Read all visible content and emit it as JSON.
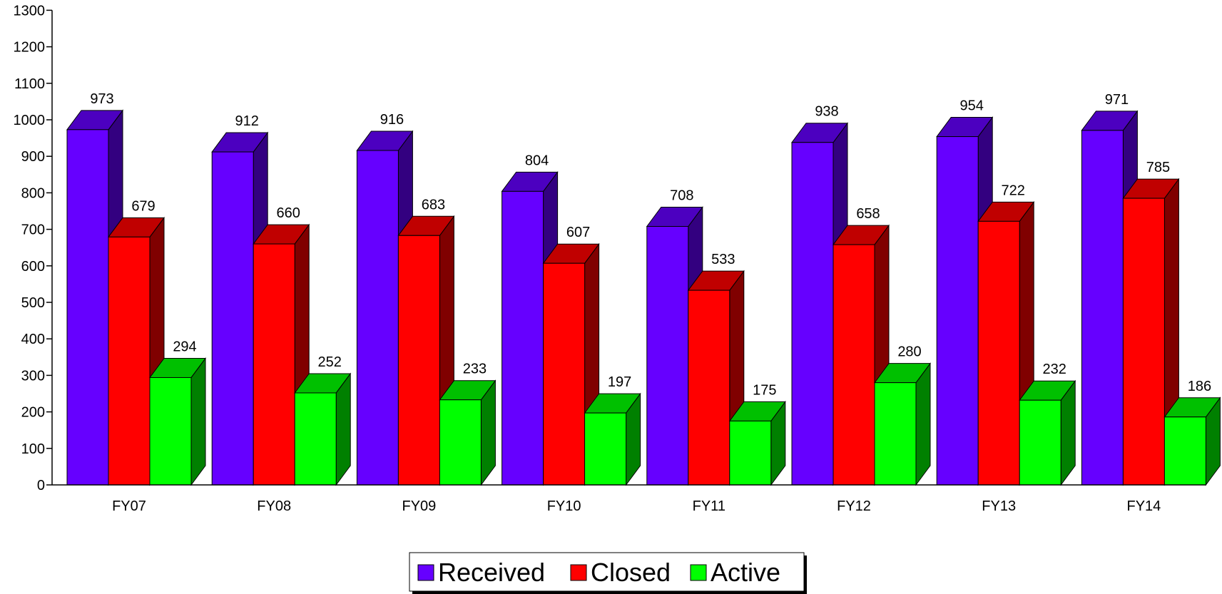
{
  "chart_data": {
    "type": "bar",
    "style": "3d-clustered",
    "categories": [
      "FY07",
      "FY08",
      "FY09",
      "FY10",
      "FY11",
      "FY12",
      "FY13",
      "FY14"
    ],
    "series": [
      {
        "name": "Received",
        "values": [
          973,
          912,
          916,
          804,
          708,
          938,
          954,
          971
        ],
        "color": "#6600ff",
        "side_color": "#330080",
        "top_color": "#4c00c0"
      },
      {
        "name": "Closed",
        "values": [
          679,
          660,
          683,
          607,
          533,
          658,
          722,
          785
        ],
        "color": "#ff0000",
        "side_color": "#800000",
        "top_color": "#c00000"
      },
      {
        "name": "Active",
        "values": [
          294,
          252,
          233,
          197,
          175,
          280,
          232,
          186
        ],
        "color": "#00ff00",
        "side_color": "#008000",
        "top_color": "#00c000"
      }
    ],
    "title": "",
    "xlabel": "",
    "ylabel": "",
    "ylim": [
      0,
      1300
    ],
    "yticks": [
      "0",
      "100",
      "200",
      "300",
      "400",
      "500",
      "600",
      "700",
      "800",
      "900",
      "1000",
      "1100",
      "1200",
      "1300"
    ],
    "data_labels": true,
    "grid": false,
    "legend": {
      "position": "bottom",
      "items": [
        "Received",
        "Closed",
        "Active"
      ]
    }
  }
}
